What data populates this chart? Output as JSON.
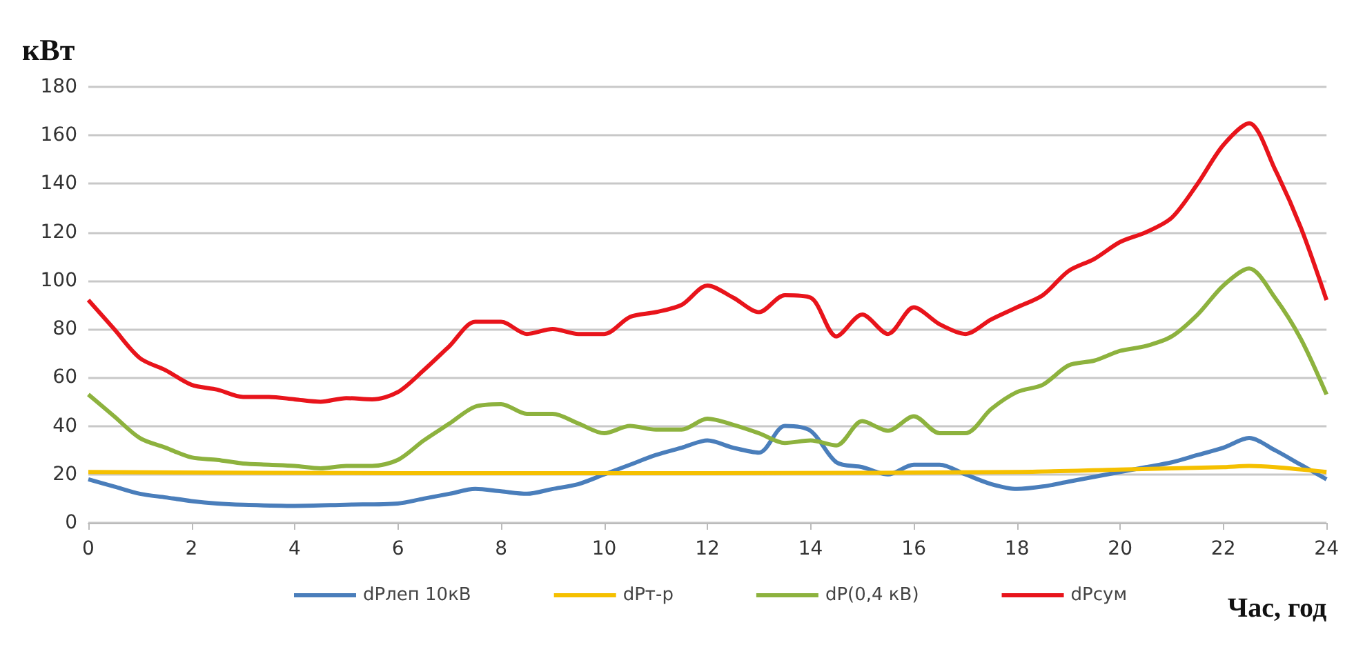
{
  "chart_data": {
    "type": "line",
    "xlabel": "Час, год",
    "ylabel": "кВт",
    "xlim": [
      0,
      24
    ],
    "xticks": [
      0,
      2,
      4,
      6,
      8,
      10,
      12,
      14,
      16,
      18,
      20,
      22,
      24
    ],
    "ylim": [
      0,
      180
    ],
    "yticks": [
      0,
      20,
      40,
      60,
      80,
      100,
      120,
      140,
      160,
      180
    ],
    "grid": "y",
    "legend": "bottom",
    "marker": "none",
    "line_style": "solid",
    "series": [
      {
        "name": "dPлеп 10кВ",
        "color": "#4a7ebb",
        "x": [
          0,
          0.5,
          1,
          1.5,
          2,
          2.5,
          3,
          4,
          5,
          6,
          6.5,
          7,
          7.5,
          8,
          8.5,
          9,
          9.5,
          10,
          10.5,
          11,
          11.5,
          12,
          12.5,
          13,
          13.5,
          14,
          14.5,
          15,
          15.5,
          16,
          16.5,
          17,
          17.5,
          18,
          18.5,
          19,
          19.5,
          20,
          20.5,
          21,
          21.5,
          22,
          22.5,
          23,
          23.5,
          24
        ],
        "values": [
          18,
          15,
          12,
          10.5,
          9,
          8,
          7.5,
          7,
          7.5,
          8,
          10,
          12,
          14,
          13,
          12,
          14,
          16,
          20,
          24,
          28,
          31,
          34,
          31,
          29,
          40,
          38,
          25,
          23,
          20,
          24,
          24,
          20,
          16,
          14,
          15,
          17,
          19,
          21,
          23,
          25,
          28,
          31,
          35,
          30,
          24,
          18
        ]
      },
      {
        "name": "dPт-р",
        "color": "#f5c000",
        "x": [
          0,
          6,
          12,
          18,
          20,
          22,
          22.5,
          23,
          24
        ],
        "values": [
          21,
          20.5,
          20.5,
          21,
          22,
          23,
          23.5,
          23,
          21
        ]
      },
      {
        "name": "dP(0,4 кВ)",
        "color": "#8db23e",
        "x": [
          0,
          0.5,
          1,
          1.5,
          2,
          2.5,
          3,
          3.5,
          4,
          4.5,
          5,
          5.5,
          6,
          6.5,
          7,
          7.5,
          8,
          8.5,
          9,
          9.5,
          10,
          10.5,
          11,
          11.5,
          12,
          12.5,
          13,
          13.5,
          14,
          14.5,
          15,
          15.5,
          16,
          16.5,
          17,
          17.5,
          18,
          18.5,
          19,
          19.5,
          20,
          20.5,
          21,
          21.5,
          22,
          22.5,
          23,
          23.5,
          24
        ],
        "values": [
          53,
          44,
          35,
          31,
          27,
          26,
          24.5,
          24,
          23.5,
          22.5,
          23.5,
          23.5,
          26,
          34,
          41,
          48,
          49,
          45,
          45,
          41,
          37,
          40,
          38.5,
          38.5,
          43,
          40.5,
          37,
          33,
          34,
          32,
          42,
          38,
          44,
          37,
          37,
          47,
          54,
          57,
          65,
          67,
          71,
          73,
          77,
          86,
          98,
          105,
          93,
          76,
          53
        ]
      },
      {
        "name": "dPсум",
        "color": "#e8141b",
        "x": [
          0,
          0.5,
          1,
          1.5,
          2,
          2.5,
          3,
          3.5,
          4,
          4.5,
          5,
          5.5,
          6,
          6.5,
          7,
          7.5,
          8,
          8.5,
          9,
          9.5,
          10,
          10.5,
          11,
          11.5,
          12,
          12.5,
          13,
          13.5,
          14,
          14.5,
          15,
          15.5,
          16,
          16.5,
          17,
          17.5,
          18,
          18.5,
          19,
          19.5,
          20,
          20.5,
          21,
          21.5,
          22,
          22.5,
          23,
          23.5,
          24
        ],
        "values": [
          92,
          80,
          68,
          63,
          57,
          55,
          52,
          52,
          51,
          50,
          51.5,
          51,
          54,
          63,
          73,
          83,
          83,
          78,
          80,
          78,
          78,
          85,
          87,
          90,
          98,
          93,
          87,
          94,
          93,
          77,
          86,
          78,
          89,
          82,
          78,
          84,
          89,
          94,
          104,
          109,
          116,
          120,
          126,
          140,
          156,
          165,
          146,
          122,
          92
        ]
      }
    ]
  }
}
